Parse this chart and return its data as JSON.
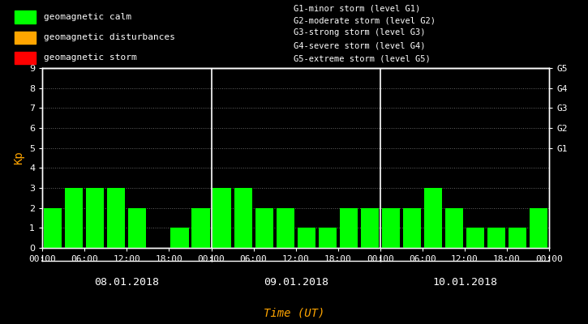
{
  "background_color": "#000000",
  "bar_color": "#00ff00",
  "text_color": "#ffffff",
  "ylabel_color": "#ffa500",
  "xlabel_color": "#ffa500",
  "ylabel": "Kp",
  "xlabel": "Time (UT)",
  "ylim": [
    0,
    9
  ],
  "yticks": [
    0,
    1,
    2,
    3,
    4,
    5,
    6,
    7,
    8,
    9
  ],
  "right_tick_vals": [
    5,
    6,
    7,
    8,
    9
  ],
  "right_tick_labels": [
    "G1",
    "G2",
    "G3",
    "G4",
    "G5"
  ],
  "days": [
    "08.01.2018",
    "09.01.2018",
    "10.01.2018"
  ],
  "kp_values": [
    [
      2,
      3,
      3,
      3,
      2,
      0,
      1,
      2
    ],
    [
      3,
      3,
      2,
      2,
      1,
      1,
      2,
      2
    ],
    [
      2,
      2,
      3,
      2,
      1,
      1,
      1,
      2
    ]
  ],
  "legend_items": [
    {
      "label": "geomagnetic calm",
      "color": "#00ff00"
    },
    {
      "label": "geomagnetic disturbances",
      "color": "#ffa500"
    },
    {
      "label": "geomagnetic storm",
      "color": "#ff0000"
    }
  ],
  "storm_levels": [
    "G1-minor storm (level G1)",
    "G2-moderate storm (level G2)",
    "G3-strong storm (level G3)",
    "G4-severe storm (level G4)",
    "G5-extreme storm (level G5)"
  ],
  "xtick_labels": [
    "00:00",
    "06:00",
    "12:00",
    "18:00",
    "00:00",
    "06:00",
    "12:00",
    "18:00",
    "00:00",
    "06:00",
    "12:00",
    "18:00",
    "00:00"
  ],
  "font_size": 8,
  "legend_font_size": 8,
  "storm_font_size": 7.5,
  "bar_width": 0.85
}
